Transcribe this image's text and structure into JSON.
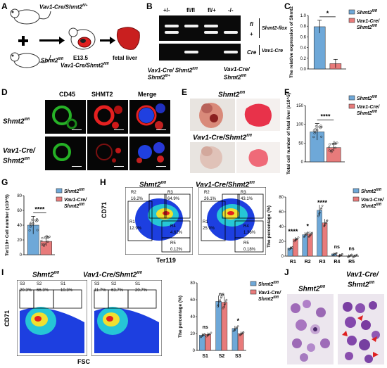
{
  "panels": {
    "A": "A",
    "B": "B",
    "C": "C",
    "D": "D",
    "E": "E",
    "F": "F",
    "G": "G",
    "H": "H",
    "I": "I",
    "J": "J"
  },
  "colors": {
    "control": "#6ea8d8",
    "cko": "#e87b7b",
    "gel": "#0a0a0a"
  },
  "A": {
    "mouse1": "Vav1-Cre/Shmt2",
    "mouse1_sup": "fl/+",
    "mouse2": "Shmt2",
    "mouse2_sup": "fl/fl",
    "stage": "E13.5",
    "embryo": "Vav1-Cre/Shmt2",
    "embryo_sup": "fl/fl",
    "organ": "fetal liver",
    "plus": "+"
  },
  "B": {
    "lanes": [
      "+/-",
      "fl/fl",
      "fl/+",
      "-/-"
    ],
    "band_fl": "fl",
    "band_plus": "+",
    "band_cre": "Cre",
    "gene1": "Shmt2-flox",
    "gene2": "Vav1-Cre",
    "left_label": "Vav1-Cre/ Shmt2",
    "left_sup": "fl/fl",
    "left_label2": "Shmt2",
    "left_sup2": "fl/+",
    "right_label": "Vav1-Cre/",
    "right_label2": "Shmt2",
    "right_sup": "fl/fl"
  },
  "legend": {
    "ctrl": "Shmt2",
    "ctrl_sup": "fl/fl",
    "cko1": "Vav1-Cre/",
    "cko2": "Shmt2",
    "cko_sup": "fl/fl"
  },
  "chart_data": [
    {
      "type": "bar",
      "panel": "C",
      "ylabel": "The relative expression of Shmt2",
      "ylim": [
        0,
        1.0
      ],
      "yticks": [
        "0.0",
        "0.2",
        "0.4",
        "0.6",
        "0.8",
        "1.0"
      ],
      "categories": [
        "Shmt2 fl/fl",
        "Vav1-Cre/Shmt2 fl/fl"
      ],
      "values": [
        0.79,
        0.1
      ],
      "errors": [
        0.12,
        0.08
      ],
      "sig": "*"
    },
    {
      "type": "bar",
      "panel": "F",
      "ylabel": "Total cell number of fetal liver (x10^5)",
      "ylim": [
        0,
        150
      ],
      "yticks": [
        "0",
        "50",
        "100",
        "150"
      ],
      "categories": [
        "Shmt2 fl/fl",
        "Vav1-Cre/Shmt2 fl/fl"
      ],
      "values": [
        80,
        38
      ],
      "errors": [
        22,
        10
      ],
      "sig": "****"
    },
    {
      "type": "bar",
      "panel": "G",
      "ylabel": "Ter119+ Cell number (x10^5)",
      "ylim": [
        0,
        80
      ],
      "yticks": [
        "0",
        "20",
        "40",
        "60",
        "80"
      ],
      "categories": [
        "Shmt2 fl/fl",
        "Vav1-Cre/Shmt2 fl/fl"
      ],
      "values": [
        40,
        18
      ],
      "errors": [
        12,
        6
      ],
      "sig": "****"
    },
    {
      "type": "bar",
      "panel": "H",
      "ylabel": "The percentage (%)",
      "ylim": [
        0,
        80
      ],
      "yticks": [
        "0",
        "20",
        "40",
        "60",
        "80"
      ],
      "categories": [
        "R1",
        "R2",
        "R3",
        "R4",
        "R5"
      ],
      "series": [
        {
          "name": "Shmt2 fl/fl",
          "values": [
            11,
            29,
            62,
            3,
            0.3
          ]
        },
        {
          "name": "Vav1-Cre/Shmt2 fl/fl",
          "values": [
            23,
            30,
            45,
            1,
            0.2
          ]
        }
      ],
      "sig": [
        "****",
        "*",
        "****",
        "ns",
        "ns"
      ]
    },
    {
      "type": "bar",
      "panel": "I",
      "ylabel": "The percentage (%)",
      "ylim": [
        0,
        80
      ],
      "yticks": [
        "0",
        "20",
        "40",
        "60",
        "80"
      ],
      "categories": [
        "S1",
        "S2",
        "S3"
      ],
      "series": [
        {
          "name": "Shmt2 fl/fl",
          "values": [
            18,
            58,
            26
          ]
        },
        {
          "name": "Vav1-Cre/Shmt2 fl/fl",
          "values": [
            19,
            57,
            20
          ]
        }
      ],
      "sig": [
        "ns",
        "ns",
        "*"
      ]
    }
  ],
  "D": {
    "cols": [
      "CD45",
      "SHMT2",
      "Merge"
    ],
    "row1": "Shmt2",
    "row1_sup": "fl/fl",
    "row2a": "Vav1-Cre/",
    "row2b": "Shmt2",
    "row2_sup": "fl/fl"
  },
  "E": {
    "top": "Shmt2",
    "top_sup": "fl/fl",
    "bottom": "Vav1-Cre/Shmt2",
    "bottom_sup": "fl/fl"
  },
  "H_flow": {
    "left_title": "Shmt2",
    "left_sup": "fl/fl",
    "right_title": "Vav1-Cre/Shmt2",
    "right_sup": "fl/fl",
    "yaxis": "CD71",
    "xaxis": "Ter119",
    "left_gates": [
      "R2\n16.2%",
      "R3\n64.9%",
      "R1\n12.9%",
      "R4\n4.62%",
      "R5\n0.12%"
    ],
    "right_gates": [
      "R2\n26.1%",
      "R3\n43.1%",
      "R1\n25.9%",
      "R4\n1.36%",
      "R5\n0.18%"
    ]
  },
  "I_flow": {
    "left_title": "Shmt2",
    "left_sup": "fl/fl",
    "right_title": "Vav1-Cre/Shmt2",
    "right_sup": "fl/fl",
    "yaxis": "CD71",
    "xaxis": "FSC",
    "left_gates": [
      "S3\n20.3%",
      "S2\n66.3%",
      "S1\n10.3%"
    ],
    "right_gates": [
      "S3\n11.7%",
      "S2\n63.7%",
      "S1\n20.7%"
    ]
  },
  "J": {
    "left": "Shmt2",
    "left_sup": "fl/fl",
    "right1": "Vav1-Cre/",
    "right2": "Shmt2",
    "right_sup": "fl/fl"
  }
}
